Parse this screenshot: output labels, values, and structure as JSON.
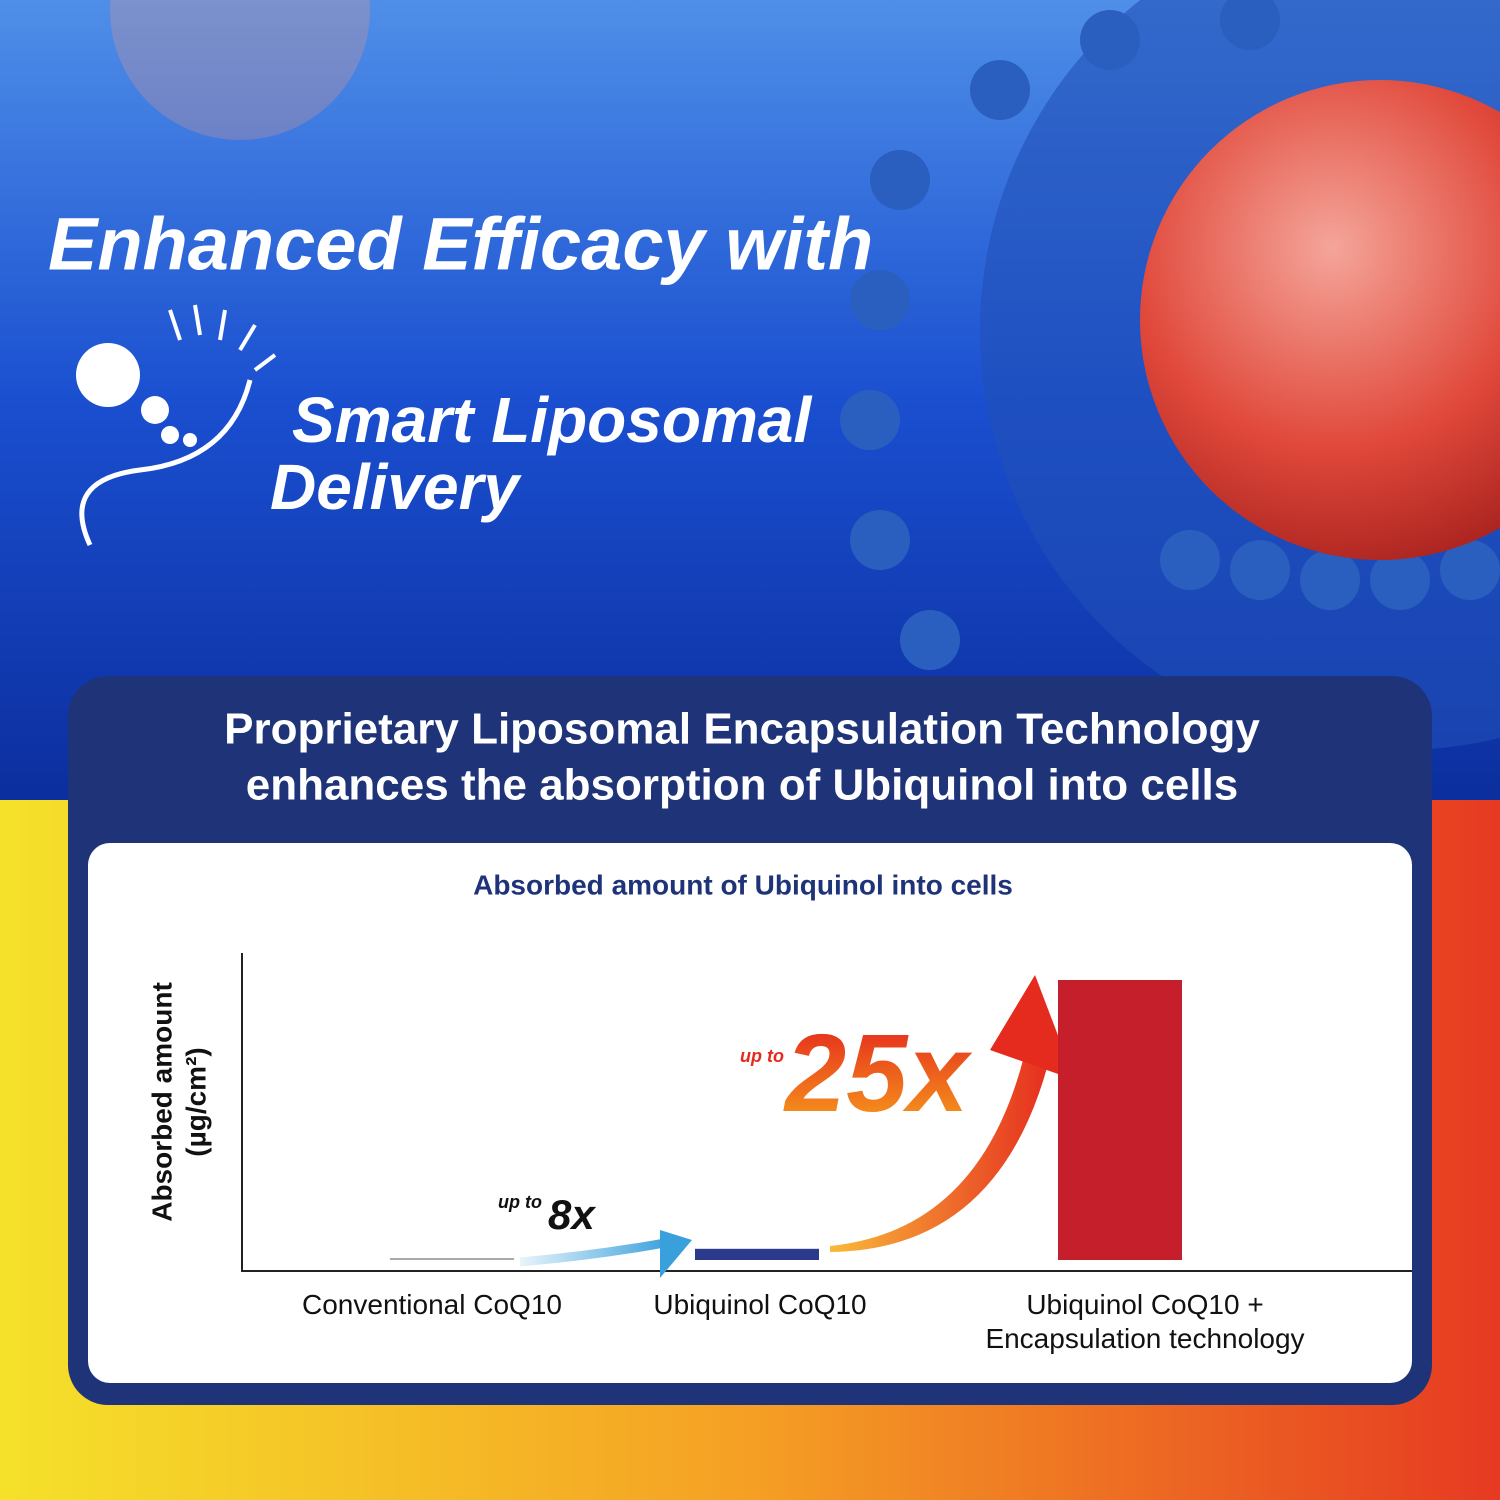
{
  "header": {
    "title": "Enhanced Efficacy with",
    "brand": [
      "Smart Liposomal",
      "Delivery"
    ]
  },
  "panel": {
    "title": [
      "Proprietary Liposomal Encapsulation Technology",
      "enhances the absorption of Ubiquinol into cells"
    ]
  },
  "chart_data": {
    "type": "bar",
    "title": "Absorbed amount of Ubiquinol into cells",
    "ylabel": [
      "Absorbed amount",
      "(µg/cm²)"
    ],
    "categories": [
      "Conventional CoQ10",
      "Ubiquinol CoQ10",
      "Ubiquinol CoQ10 +\nEncapsulation technology"
    ],
    "values": [
      0.7,
      4,
      100
    ],
    "colors": [
      "#a8a8a8",
      "#2b3a8c",
      "#c41f2a"
    ],
    "ylim": [
      0,
      110
    ],
    "annotations": [
      "up to",
      "8x",
      "up to",
      "25x"
    ]
  }
}
